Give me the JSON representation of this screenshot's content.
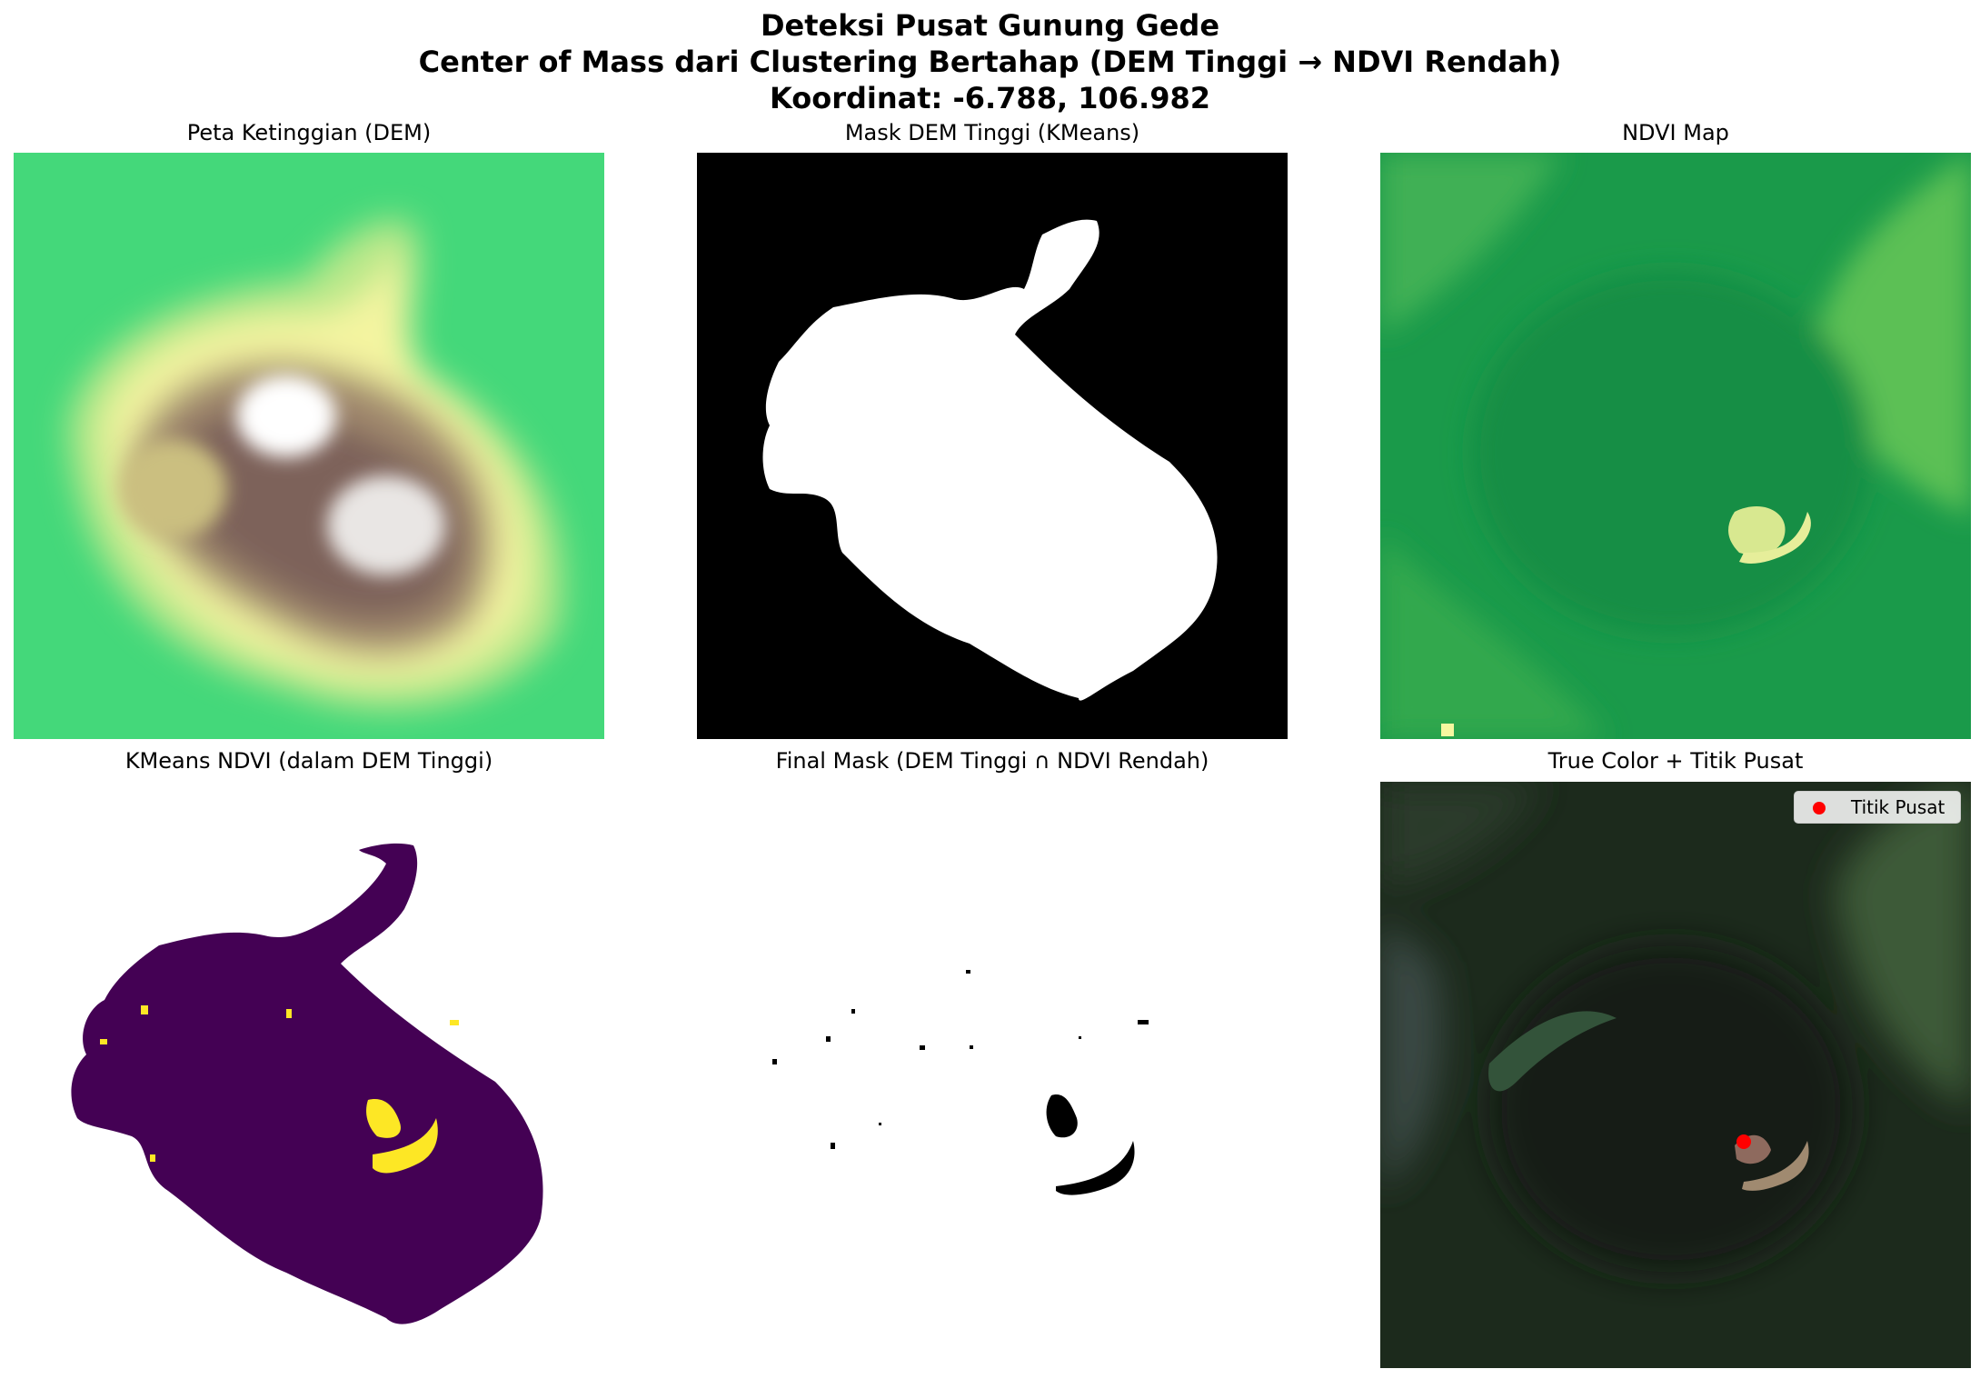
{
  "figure": {
    "title_line1": "Deteksi Pusat Gunung Gede",
    "title_line2": "Center of Mass dari Clustering Bertahap (DEM Tinggi → NDVI Rendah)",
    "title_line3": "Koordinat: -6.788, 106.982"
  },
  "panels": [
    {
      "title": "Peta Ketinggian (DEM)"
    },
    {
      "title": "Mask DEM Tinggi (KMeans)"
    },
    {
      "title": "NDVI Map"
    },
    {
      "title": "KMeans NDVI (dalam DEM Tinggi)"
    },
    {
      "title": "Final Mask (DEM Tinggi ∩ NDVI Rendah)"
    },
    {
      "title": "True Color + Titik Pusat"
    }
  ],
  "legend": {
    "label": "Titik Pusat",
    "marker_color": "#ff0000"
  },
  "colors": {
    "dem_low": "#3fd679",
    "dem_mid": "#f7f7a0",
    "dem_high_brown": "#8c6e6a",
    "ndvi_green": "#1a9a4a",
    "kmeans_purple": "#440154",
    "kmeans_yellow": "#fde725",
    "truecolor_dark": "#1c2a1c"
  }
}
